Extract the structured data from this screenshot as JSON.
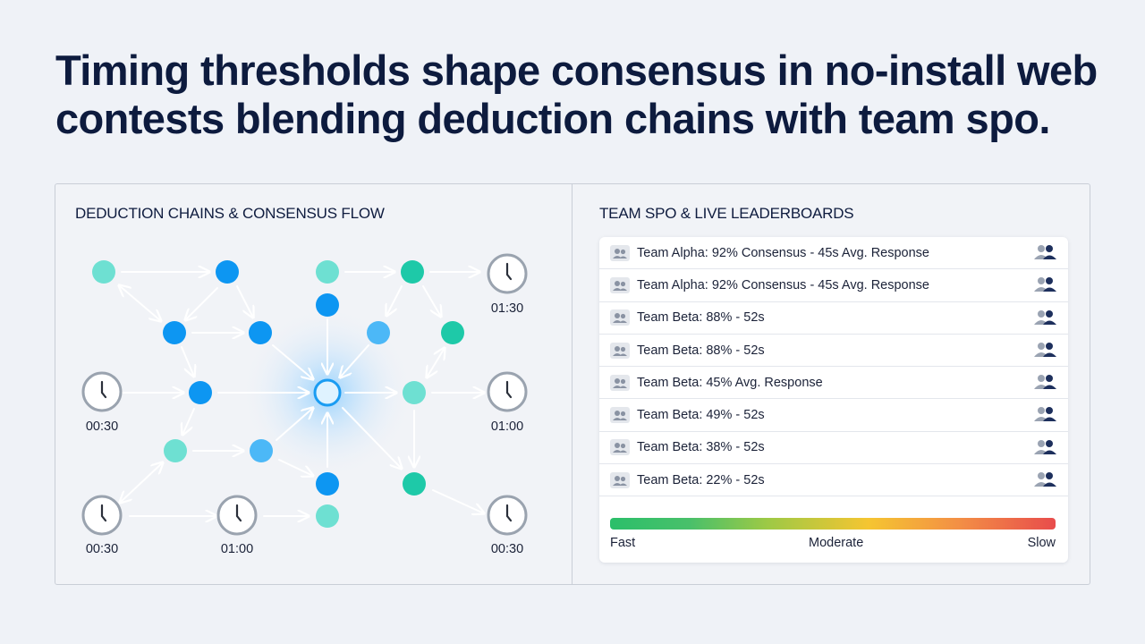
{
  "headline": "Timing thresholds shape consensus in no-install web contests blending deduction chains with team spo.",
  "left_panel": {
    "title": "DEDUCTION CHAINS & CONSENSUS FLOW",
    "clocks": [
      {
        "id": "c1",
        "label": "01:30"
      },
      {
        "id": "c2",
        "label": "00:30"
      },
      {
        "id": "c3",
        "label": "01:00"
      },
      {
        "id": "c4",
        "label": "00:30"
      },
      {
        "id": "c5",
        "label": "01:00"
      },
      {
        "id": "c6",
        "label": "00:30"
      }
    ]
  },
  "right_panel": {
    "title": "TEAM SPO & LIVE LEADERBOARDS",
    "rows": [
      "Team Alpha: 92% Consensus - 45s Avg. Response",
      "Team Alpha: 92% Consensus - 45s Avg. Response",
      "Team Beta: 88% - 52s",
      "Team Beta: 88% - 52s",
      "Team Beta: 45% Avg. Response",
      "Team Beta: 49% - 52s",
      "Team Beta: 38% - 52s",
      "Team Beta: 22% - 52s"
    ],
    "scale": {
      "fast": "Fast",
      "moderate": "Moderate",
      "slow": "Slow"
    }
  },
  "colors": {
    "teal_light": "#6ee0d2",
    "teal": "#1ec9a8",
    "blue": "#0d96f2",
    "blue_light": "#4cb8f7",
    "hub_glow": "#8fd3ff",
    "clock_ring": "#9aa3af",
    "headline": "#0d1b3e"
  },
  "icons": {
    "row_left": "team-icon",
    "row_right": "users-icon",
    "clock": "clock-icon"
  }
}
